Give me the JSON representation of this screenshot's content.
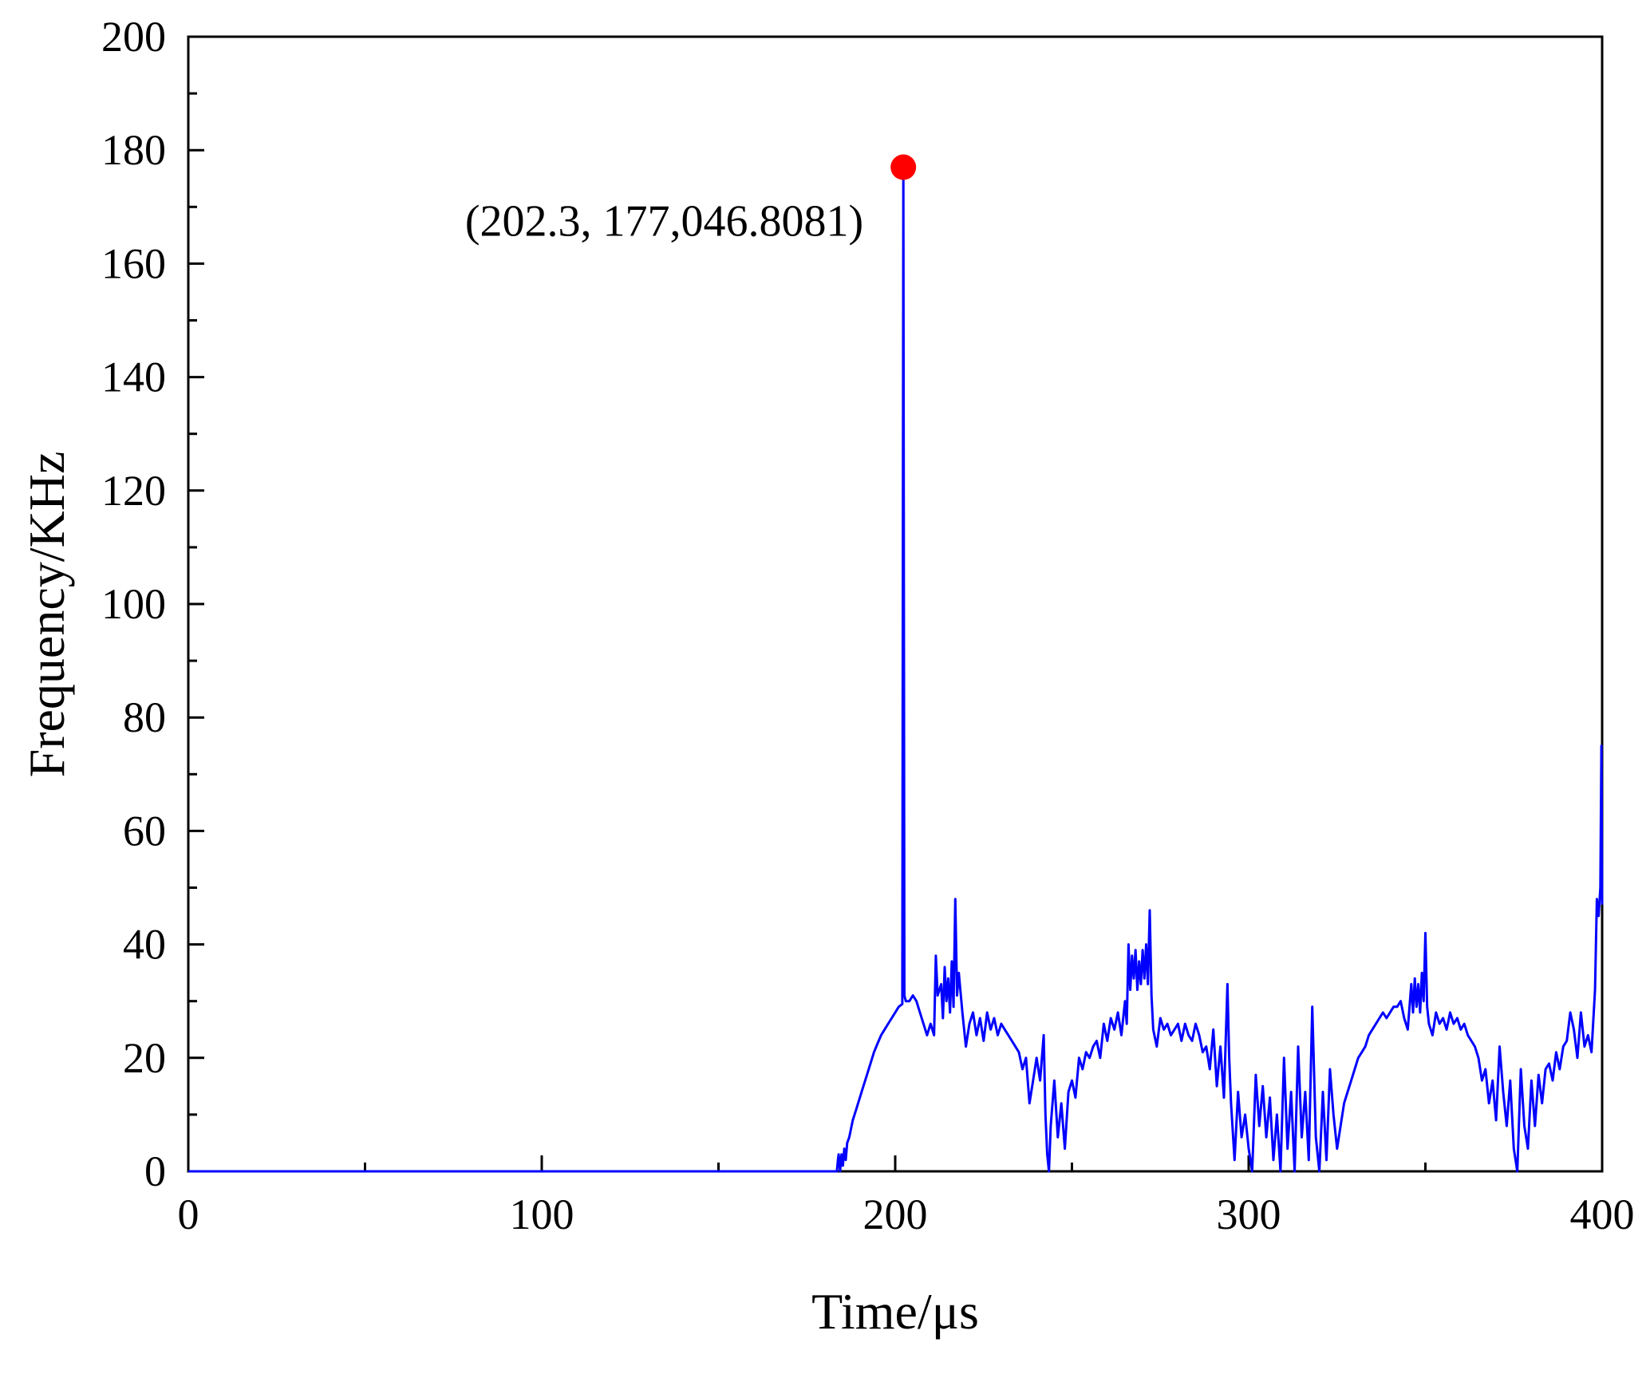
{
  "chart_data": {
    "type": "line",
    "xlabel": "Time/μs",
    "ylabel": "Frequency/KHz",
    "xlim": [
      0,
      400
    ],
    "ylim": [
      0,
      200
    ],
    "xticks": [
      0,
      100,
      200,
      300,
      400
    ],
    "yticks": [
      0,
      20,
      40,
      60,
      80,
      100,
      120,
      140,
      160,
      180,
      200
    ],
    "minor_xticks": [
      50,
      150,
      250,
      350
    ],
    "minor_yticks": [
      10,
      30,
      50,
      70,
      90,
      110,
      130,
      150,
      170,
      190
    ],
    "grid": false,
    "line_color": "#0000ff",
    "marker_color": "#ff0000",
    "annotation": {
      "text": "(202.3, 177,046.8081)",
      "x": 202.3,
      "y": 177
    },
    "series": [
      {
        "values": [
          [
            0,
            0
          ],
          [
            183.5,
            0
          ],
          [
            183.8,
            2
          ],
          [
            184,
            3
          ],
          [
            184.4,
            0
          ],
          [
            184.8,
            3
          ],
          [
            185.2,
            1
          ],
          [
            185.6,
            4
          ],
          [
            186,
            2
          ],
          [
            186.4,
            5
          ],
          [
            187,
            6
          ],
          [
            188,
            9
          ],
          [
            189,
            11
          ],
          [
            190,
            13
          ],
          [
            191,
            15
          ],
          [
            192,
            17
          ],
          [
            193,
            19
          ],
          [
            194,
            21
          ],
          [
            195,
            22.5
          ],
          [
            196,
            24
          ],
          [
            197,
            25
          ],
          [
            198,
            26
          ],
          [
            199,
            27
          ],
          [
            200,
            28
          ],
          [
            201,
            29
          ],
          [
            202,
            29.5
          ],
          [
            202.3,
            177
          ],
          [
            202.6,
            31
          ],
          [
            203,
            30
          ],
          [
            204,
            30
          ],
          [
            205,
            31
          ],
          [
            206,
            30
          ],
          [
            207,
            28
          ],
          [
            208,
            26
          ],
          [
            209,
            24
          ],
          [
            210,
            26
          ],
          [
            211,
            24
          ],
          [
            211.5,
            38
          ],
          [
            212,
            31
          ],
          [
            213,
            33
          ],
          [
            213.5,
            27
          ],
          [
            214,
            36
          ],
          [
            214.5,
            30
          ],
          [
            215,
            34
          ],
          [
            215.5,
            28
          ],
          [
            216,
            37
          ],
          [
            216.5,
            29
          ],
          [
            217,
            48
          ],
          [
            217.5,
            31
          ],
          [
            218,
            35
          ],
          [
            219,
            28
          ],
          [
            220,
            22
          ],
          [
            221,
            26
          ],
          [
            222,
            28
          ],
          [
            223,
            24
          ],
          [
            224,
            27
          ],
          [
            225,
            23
          ],
          [
            226,
            28
          ],
          [
            227,
            25
          ],
          [
            228,
            27
          ],
          [
            229,
            24
          ],
          [
            230,
            26
          ],
          [
            231,
            25
          ],
          [
            232,
            24
          ],
          [
            233,
            23
          ],
          [
            234,
            22
          ],
          [
            235,
            21
          ],
          [
            236,
            18
          ],
          [
            237,
            20
          ],
          [
            238,
            12
          ],
          [
            239,
            16
          ],
          [
            240,
            20
          ],
          [
            241,
            16
          ],
          [
            242,
            24
          ],
          [
            242.5,
            10
          ],
          [
            243,
            3
          ],
          [
            243.5,
            0
          ],
          [
            244,
            8
          ],
          [
            245,
            16
          ],
          [
            246,
            6
          ],
          [
            247,
            12
          ],
          [
            248,
            4
          ],
          [
            249,
            14
          ],
          [
            250,
            16
          ],
          [
            251,
            13
          ],
          [
            252,
            20
          ],
          [
            253,
            18
          ],
          [
            254,
            21
          ],
          [
            255,
            20
          ],
          [
            256,
            22
          ],
          [
            257,
            23
          ],
          [
            258,
            20
          ],
          [
            259,
            26
          ],
          [
            260,
            23
          ],
          [
            261,
            27
          ],
          [
            262,
            25
          ],
          [
            263,
            28
          ],
          [
            264,
            24
          ],
          [
            265,
            30
          ],
          [
            265.5,
            26
          ],
          [
            266,
            40
          ],
          [
            266.5,
            32
          ],
          [
            267,
            38
          ],
          [
            267.5,
            34
          ],
          [
            268,
            39
          ],
          [
            268.5,
            32
          ],
          [
            269,
            37
          ],
          [
            269.5,
            33
          ],
          [
            270,
            39
          ],
          [
            270.5,
            34
          ],
          [
            271,
            40
          ],
          [
            271.5,
            33
          ],
          [
            272,
            46
          ],
          [
            272.5,
            31
          ],
          [
            273,
            25
          ],
          [
            274,
            22
          ],
          [
            275,
            27
          ],
          [
            276,
            25
          ],
          [
            277,
            26
          ],
          [
            278,
            24
          ],
          [
            279,
            25
          ],
          [
            280,
            26
          ],
          [
            281,
            23
          ],
          [
            282,
            26
          ],
          [
            283,
            24
          ],
          [
            284,
            23
          ],
          [
            285,
            26
          ],
          [
            286,
            24
          ],
          [
            287,
            21
          ],
          [
            288,
            22
          ],
          [
            289,
            18
          ],
          [
            290,
            25
          ],
          [
            291,
            15
          ],
          [
            292,
            22
          ],
          [
            293,
            13
          ],
          [
            294,
            33
          ],
          [
            294.5,
            20
          ],
          [
            295,
            12
          ],
          [
            296,
            2
          ],
          [
            297,
            14
          ],
          [
            298,
            6
          ],
          [
            299,
            10
          ],
          [
            300,
            4
          ],
          [
            301,
            0
          ],
          [
            302,
            17
          ],
          [
            303,
            8
          ],
          [
            304,
            15
          ],
          [
            305,
            6
          ],
          [
            306,
            13
          ],
          [
            307,
            2
          ],
          [
            308,
            10
          ],
          [
            309,
            0
          ],
          [
            310,
            20
          ],
          [
            311,
            4
          ],
          [
            312,
            14
          ],
          [
            313,
            0
          ],
          [
            314,
            22
          ],
          [
            315,
            6
          ],
          [
            316,
            14
          ],
          [
            317,
            2
          ],
          [
            318,
            29
          ],
          [
            319,
            6
          ],
          [
            320,
            0
          ],
          [
            321,
            14
          ],
          [
            322,
            2
          ],
          [
            323,
            18
          ],
          [
            324,
            10
          ],
          [
            325,
            4
          ],
          [
            326,
            8
          ],
          [
            327,
            12
          ],
          [
            328,
            14
          ],
          [
            329,
            16
          ],
          [
            330,
            18
          ],
          [
            331,
            20
          ],
          [
            332,
            21
          ],
          [
            333,
            22
          ],
          [
            334,
            24
          ],
          [
            335,
            25
          ],
          [
            336,
            26
          ],
          [
            337,
            27
          ],
          [
            338,
            28
          ],
          [
            339,
            27
          ],
          [
            340,
            28
          ],
          [
            341,
            29
          ],
          [
            342,
            29
          ],
          [
            343,
            30
          ],
          [
            344,
            27
          ],
          [
            345,
            25
          ],
          [
            346,
            33
          ],
          [
            346.5,
            28
          ],
          [
            347,
            34
          ],
          [
            347.5,
            29
          ],
          [
            348,
            33
          ],
          [
            348.5,
            28
          ],
          [
            349,
            35
          ],
          [
            349.5,
            30
          ],
          [
            350,
            42
          ],
          [
            350.5,
            29
          ],
          [
            351,
            26
          ],
          [
            352,
            24
          ],
          [
            353,
            28
          ],
          [
            354,
            26
          ],
          [
            355,
            27
          ],
          [
            356,
            25
          ],
          [
            357,
            28
          ],
          [
            358,
            26
          ],
          [
            359,
            27
          ],
          [
            360,
            25
          ],
          [
            361,
            26
          ],
          [
            362,
            24
          ],
          [
            363,
            23
          ],
          [
            364,
            22
          ],
          [
            365,
            20
          ],
          [
            366,
            16
          ],
          [
            367,
            18
          ],
          [
            368,
            12
          ],
          [
            369,
            16
          ],
          [
            370,
            9
          ],
          [
            371,
            22
          ],
          [
            372,
            14
          ],
          [
            373,
            8
          ],
          [
            374,
            16
          ],
          [
            375,
            4
          ],
          [
            376,
            0
          ],
          [
            377,
            18
          ],
          [
            378,
            8
          ],
          [
            379,
            4
          ],
          [
            380,
            16
          ],
          [
            381,
            8
          ],
          [
            382,
            17
          ],
          [
            383,
            12
          ],
          [
            384,
            18
          ],
          [
            385,
            19
          ],
          [
            386,
            16
          ],
          [
            387,
            21
          ],
          [
            388,
            18
          ],
          [
            389,
            22
          ],
          [
            390,
            23
          ],
          [
            391,
            28
          ],
          [
            392,
            25
          ],
          [
            393,
            20
          ],
          [
            394,
            28
          ],
          [
            395,
            22
          ],
          [
            396,
            24
          ],
          [
            397,
            21
          ],
          [
            398,
            32
          ],
          [
            398.5,
            48
          ],
          [
            399,
            45
          ],
          [
            399.5,
            50
          ],
          [
            399.8,
            75
          ],
          [
            400,
            47
          ]
        ]
      }
    ]
  }
}
